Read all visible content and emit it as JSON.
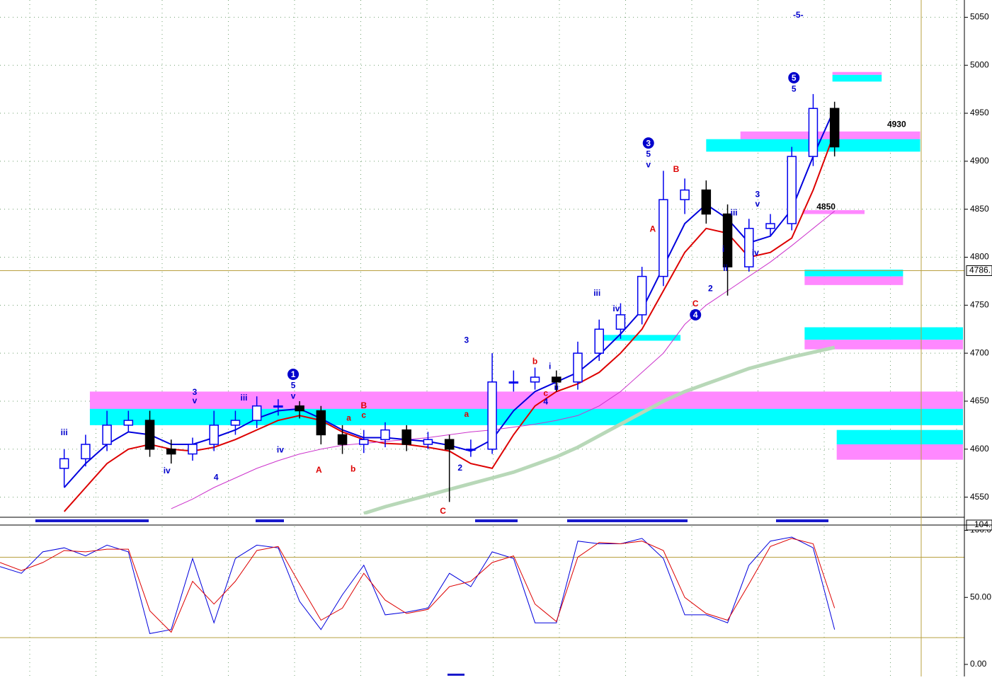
{
  "chart_data": [
    {
      "type": "candlestick",
      "x": [
        0,
        1,
        2,
        3,
        4,
        5,
        6,
        7,
        8,
        9,
        10,
        11,
        12,
        13,
        14,
        15,
        16,
        17,
        18,
        19,
        20,
        21,
        22,
        23,
        24,
        25,
        26,
        27,
        28,
        29,
        30,
        31,
        32,
        33,
        34,
        35,
        36
      ],
      "open": [
        4580,
        4590,
        4605,
        4625,
        4630,
        4600,
        4595,
        4605,
        4625,
        4630,
        4645,
        4645,
        4640,
        4615,
        4605,
        4610,
        4620,
        4605,
        4610,
        4600,
        4600,
        4670,
        4670,
        4675,
        4670,
        4700,
        4725,
        4740,
        4780,
        4860,
        4870,
        4845,
        4790,
        4830,
        4835,
        4905,
        4955
      ],
      "high": [
        4600,
        4615,
        4640,
        4640,
        4640,
        4610,
        4612,
        4640,
        4640,
        4655,
        4652,
        4650,
        4645,
        4625,
        4620,
        4628,
        4625,
        4618,
        4615,
        4610,
        4700,
        4682,
        4685,
        4682,
        4712,
        4735,
        4752,
        4790,
        4890,
        4882,
        4880,
        4855,
        4840,
        4845,
        4915,
        4970,
        4962
      ],
      "low": [
        4560,
        4582,
        4598,
        4618,
        4592,
        4585,
        4588,
        4598,
        4615,
        4622,
        4635,
        4632,
        4605,
        4595,
        4596,
        4602,
        4598,
        4600,
        4545,
        4592,
        4595,
        4660,
        4662,
        4660,
        4662,
        4692,
        4715,
        4730,
        4770,
        4845,
        4835,
        4760,
        4785,
        4822,
        4828,
        4895,
        4905
      ],
      "close": [
        4590,
        4605,
        4625,
        4630,
        4600,
        4595,
        4605,
        4625,
        4630,
        4645,
        4645,
        4640,
        4615,
        4605,
        4610,
        4620,
        4605,
        4610,
        4600,
        4600,
        4670,
        4670,
        4675,
        4670,
        4700,
        4725,
        4740,
        4780,
        4860,
        4870,
        4845,
        4790,
        4830,
        4835,
        4905,
        4955,
        4915
      ],
      "up_color": "#0000ee",
      "down_color": "#000000",
      "series": [
        {
          "color": "#0000dd",
          "width": 2,
          "values": [
            4560,
            4585,
            4605,
            4618,
            4615,
            4605,
            4605,
            4612,
            4620,
            4632,
            4640,
            4642,
            4632,
            4620,
            4612,
            4612,
            4610,
            4608,
            4604,
            4598,
            4610,
            4640,
            4660,
            4670,
            4680,
            4698,
            4720,
            4745,
            4790,
            4835,
            4855,
            4840,
            4815,
            4822,
            4850,
            4905,
            4955
          ]
        },
        {
          "color": "#dd0000",
          "width": 2,
          "values": [
            4535,
            4560,
            4585,
            4600,
            4605,
            4600,
            4598,
            4602,
            4610,
            4620,
            4630,
            4635,
            4630,
            4618,
            4610,
            4606,
            4605,
            4602,
            4598,
            4585,
            4580,
            4615,
            4645,
            4660,
            4668,
            4680,
            4700,
            4725,
            4765,
            4805,
            4830,
            4825,
            4800,
            4805,
            4820,
            4870,
            4930
          ]
        },
        {
          "color": "#cc33cc",
          "width": 1,
          "values": [
            null,
            null,
            null,
            null,
            null,
            4538,
            4548,
            4560,
            4570,
            4580,
            4588,
            4595,
            4600,
            4604,
            4606,
            4608,
            4610,
            4612,
            4615,
            4618,
            4620,
            4623,
            4626,
            4630,
            4635,
            4645,
            4660,
            4680,
            4700,
            4730,
            4750,
            4765,
            4780,
            4795,
            4812,
            4830,
            4848
          ]
        },
        {
          "color": "#b8d8b8",
          "width": 5,
          "values": [
            null,
            null,
            null,
            null,
            null,
            null,
            null,
            null,
            null,
            null,
            null,
            null,
            null,
            null,
            4533,
            4540,
            4546,
            4552,
            4558,
            4564,
            4570,
            4576,
            4584,
            4592,
            4602,
            4614,
            4626,
            4638,
            4650,
            4660,
            4668,
            4676,
            4684,
            4690,
            4696,
            4701,
            4706
          ]
        }
      ],
      "zones": [
        {
          "x": [
            1.2,
            42
          ],
          "y": [
            4640,
            4660
          ],
          "color": "#ff88ff"
        },
        {
          "x": [
            1.2,
            42
          ],
          "y": [
            4625,
            4642
          ],
          "color": "#00ffff"
        },
        {
          "x": [
            31.6,
            40
          ],
          "y": [
            4922,
            4931
          ],
          "color": "#ff88ff"
        },
        {
          "x": [
            30,
            40
          ],
          "y": [
            4910,
            4923
          ],
          "color": "#00ffff"
        },
        {
          "x": [
            35.9,
            38.2
          ],
          "y": [
            4990,
            4993
          ],
          "color": "#ff88ff"
        },
        {
          "x": [
            35.9,
            38.2
          ],
          "y": [
            4983,
            4990
          ],
          "color": "#00ffff"
        },
        {
          "x": [
            34.6,
            39.2
          ],
          "y": [
            4780,
            4787
          ],
          "color": "#00ffff"
        },
        {
          "x": [
            34.6,
            39.2
          ],
          "y": [
            4771,
            4780
          ],
          "color": "#ff88ff"
        },
        {
          "x": [
            34.6,
            42
          ],
          "y": [
            4714,
            4727
          ],
          "color": "#00ffff"
        },
        {
          "x": [
            34.6,
            42
          ],
          "y": [
            4704,
            4714
          ],
          "color": "#ff88ff"
        },
        {
          "x": [
            36.1,
            42
          ],
          "y": [
            4605,
            4620
          ],
          "color": "#00ffff"
        },
        {
          "x": [
            36.1,
            42
          ],
          "y": [
            4589,
            4605
          ],
          "color": "#ff88ff"
        },
        {
          "x": [
            24.8,
            28.8
          ],
          "y": [
            4713,
            4719
          ],
          "color": "#00ffff"
        },
        {
          "x": [
            34.5,
            37.4
          ],
          "y": [
            4845,
            4849
          ],
          "color": "#ff88ff"
        }
      ],
      "hline": {
        "value": 4786,
        "label": "4786."
      },
      "annotations": [
        {
          "text": "iii",
          "x": 0,
          "y": 4617,
          "color": "#0000cc"
        },
        {
          "text": "3",
          "x": 6.1,
          "y": 4659,
          "color": "#0000cc"
        },
        {
          "text": "v",
          "x": 6.1,
          "y": 4650,
          "color": "#0000cc"
        },
        {
          "text": "iv",
          "x": 4.8,
          "y": 4577,
          "color": "#0000cc"
        },
        {
          "text": "4",
          "x": 7.1,
          "y": 4570,
          "color": "#0000cc"
        },
        {
          "text": "iii",
          "x": 8.4,
          "y": 4653,
          "color": "#0000cc"
        },
        {
          "text": "iv",
          "x": 10.1,
          "y": 4599,
          "color": "#0000cc"
        },
        {
          "text": "5",
          "x": 10.7,
          "y": 4666,
          "color": "#0000cc"
        },
        {
          "text": "v",
          "x": 10.7,
          "y": 4655,
          "color": "#0000cc"
        },
        {
          "text": "A",
          "x": 11.9,
          "y": 4578,
          "color": "#dd0000"
        },
        {
          "text": "a",
          "x": 13.3,
          "y": 4632,
          "color": "#dd0000"
        },
        {
          "text": "b",
          "x": 13.5,
          "y": 4579,
          "color": "#dd0000"
        },
        {
          "text": "B",
          "x": 14.0,
          "y": 4645,
          "color": "#dd0000"
        },
        {
          "text": "c",
          "x": 14.0,
          "y": 4635,
          "color": "#dd0000"
        },
        {
          "text": "C",
          "x": 17.7,
          "y": 4535,
          "color": "#dd0000"
        },
        {
          "text": "2",
          "x": 18.5,
          "y": 4580,
          "color": "#0000cc"
        },
        {
          "text": "a",
          "x": 18.8,
          "y": 4636,
          "color": "#dd0000"
        },
        {
          "text": "3",
          "x": 18.8,
          "y": 4713,
          "color": "#0000cc"
        },
        {
          "text": "b",
          "x": 22.0,
          "y": 4691,
          "color": "#dd0000"
        },
        {
          "text": "i",
          "x": 22.7,
          "y": 4686,
          "color": "#0000cc"
        },
        {
          "text": "c",
          "x": 22.5,
          "y": 4658,
          "color": "#dd0000"
        },
        {
          "text": "ii",
          "x": 23.0,
          "y": 4664,
          "color": "#0000cc"
        },
        {
          "text": "4",
          "x": 22.5,
          "y": 4649,
          "color": "#0000cc"
        },
        {
          "text": "iii",
          "x": 24.9,
          "y": 4762,
          "color": "#0000cc"
        },
        {
          "text": "iv",
          "x": 25.8,
          "y": 4746,
          "color": "#0000cc"
        },
        {
          "text": "5",
          "x": 27.3,
          "y": 4907,
          "color": "#0000cc"
        },
        {
          "text": "v",
          "x": 27.3,
          "y": 4896,
          "color": "#0000cc"
        },
        {
          "text": "A",
          "x": 27.5,
          "y": 4829,
          "color": "#dd0000"
        },
        {
          "text": "B",
          "x": 28.6,
          "y": 4891,
          "color": "#dd0000"
        },
        {
          "text": "C",
          "x": 29.5,
          "y": 4751,
          "color": "#dd0000"
        },
        {
          "text": "2",
          "x": 30.2,
          "y": 4767,
          "color": "#0000cc"
        },
        {
          "text": "i",
          "x": 30.8,
          "y": 4808,
          "color": "#0000cc"
        },
        {
          "text": "ii",
          "x": 30.9,
          "y": 4788,
          "color": "#0000cc"
        },
        {
          "text": "iii",
          "x": 31.3,
          "y": 4846,
          "color": "#0000cc"
        },
        {
          "text": "3",
          "x": 32.4,
          "y": 4865,
          "color": "#0000cc"
        },
        {
          "text": "v",
          "x": 32.4,
          "y": 4855,
          "color": "#0000cc"
        },
        {
          "text": "iv",
          "x": 32.3,
          "y": 4804,
          "color": "#0000cc"
        },
        {
          "text": "5",
          "x": 34.1,
          "y": 4975,
          "color": "#0000cc"
        },
        {
          "text": "-5-",
          "x": 34.3,
          "y": 5052,
          "color": "#0000cc"
        },
        {
          "text": "4930",
          "x": 38.9,
          "y": 4938,
          "color": "#000000"
        },
        {
          "text": "4850",
          "x": 35.6,
          "y": 4852,
          "color": "#000000"
        }
      ],
      "circles": [
        {
          "text": "1",
          "x": 10.7,
          "y": 4678
        },
        {
          "text": "3",
          "x": 27.3,
          "y": 4919
        },
        {
          "text": "4",
          "x": 29.5,
          "y": 4740
        },
        {
          "text": "5",
          "x": 34.1,
          "y": 4987
        }
      ],
      "circle_color": "#0000cc",
      "xlim": [
        -3,
        42
      ],
      "ylim": [
        4532,
        5068
      ],
      "yticks": [
        4550,
        4600,
        4650,
        4700,
        4750,
        4800,
        4850,
        4900,
        4950,
        5000,
        5050
      ],
      "grid": true
    },
    {
      "type": "line",
      "x": [
        -3,
        -2,
        -1,
        0,
        1,
        2,
        3,
        4,
        5,
        6,
        7,
        8,
        9,
        10,
        11,
        12,
        13,
        14,
        15,
        16,
        17,
        18,
        19,
        20,
        21,
        22,
        23,
        24,
        25,
        26,
        27,
        28,
        29,
        30,
        31,
        32,
        33,
        34,
        35,
        36
      ],
      "series": [
        {
          "color": "#0000dd",
          "values": [
            73,
            68,
            84,
            87,
            81,
            89,
            84,
            23,
            26,
            79,
            31,
            79,
            89,
            87,
            47,
            26,
            52,
            74,
            37,
            39,
            42,
            68,
            58,
            84,
            79,
            31,
            31,
            92,
            90,
            90,
            94,
            79,
            37,
            37,
            31,
            74,
            92,
            95,
            87,
            26
          ]
        },
        {
          "color": "#dd0000",
          "values": [
            76,
            70,
            76,
            85,
            84,
            86,
            86,
            40,
            24,
            62,
            45,
            62,
            85,
            88,
            60,
            33,
            42,
            68,
            48,
            38,
            41,
            58,
            62,
            76,
            81,
            45,
            32,
            80,
            91,
            90,
            92,
            85,
            50,
            38,
            33,
            60,
            88,
            94,
            90,
            42
          ]
        }
      ],
      "levels": [
        80,
        20
      ],
      "last_label": {
        "value": 104,
        "label": "104."
      },
      "xlim": [
        -3,
        42
      ],
      "ylim": [
        -9,
        104
      ],
      "yticks": [
        {
          "value": 100,
          "label": "100.0"
        },
        {
          "value": 50,
          "label": "50.00"
        },
        {
          "value": 0,
          "label": "0.00"
        }
      ]
    }
  ]
}
